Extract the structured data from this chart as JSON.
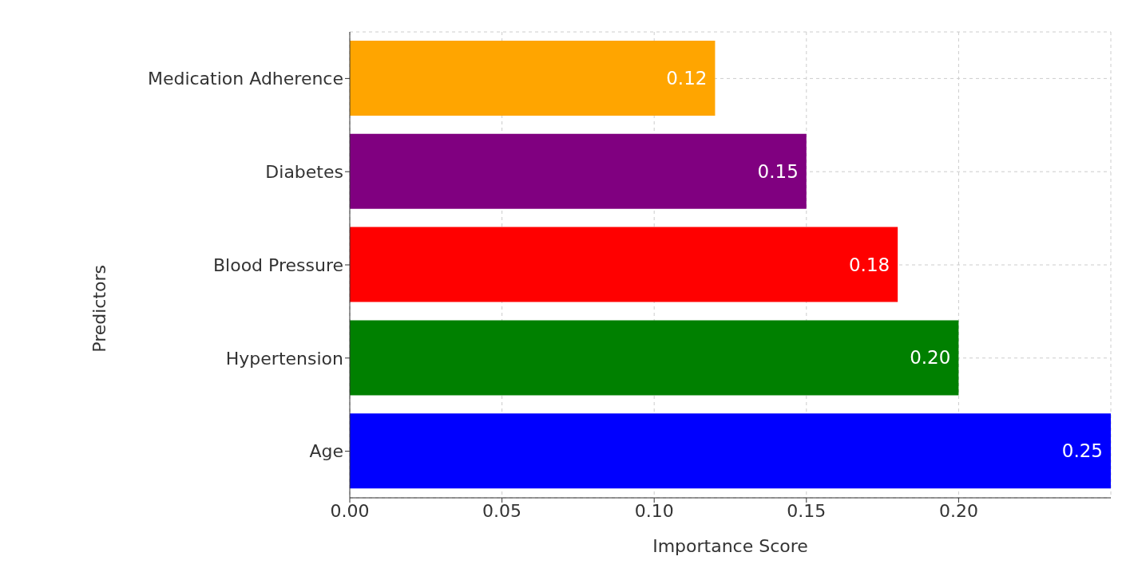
{
  "chart_data": {
    "type": "bar",
    "orientation": "horizontal",
    "xlabel": "Importance Score",
    "ylabel": "Predictors",
    "categories": [
      "Medication Adherence",
      "Diabetes",
      "Blood Pressure",
      "Hypertension",
      "Age"
    ],
    "values": [
      0.12,
      0.15,
      0.18,
      0.2,
      0.25
    ],
    "value_labels": [
      "0.12",
      "0.15",
      "0.18",
      "0.20",
      "0.25"
    ],
    "colors": [
      "#ffa500",
      "#800080",
      "#ff0000",
      "#008000",
      "#0000ff"
    ],
    "xlim": [
      0,
      0.25
    ],
    "xticks": [
      "0.00",
      "0.05",
      "0.10",
      "0.15",
      "0.20"
    ],
    "grid": true
  }
}
